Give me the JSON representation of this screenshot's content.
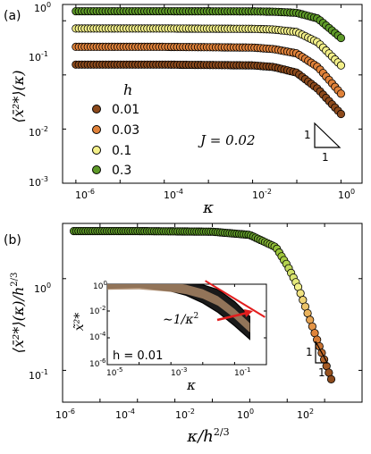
{
  "panel_a": {
    "label": "(a)",
    "x_axis_label": "κ",
    "y_axis_label": "⟨x̄²*⟩(κ)",
    "x_ticks": [
      "10-6",
      "10-4",
      "10-2",
      "100"
    ],
    "y_ticks": [
      "100",
      "10-1",
      "10-2",
      "10-3"
    ],
    "legend_title": "h",
    "legend_labels": [
      "0.01",
      "0.03",
      "0.1",
      "0.3"
    ],
    "annotation": "J = 0.02",
    "slope_triangle": {
      "vertical": "1",
      "horizontal": "1"
    }
  },
  "panel_b": {
    "label": "(b)",
    "x_axis_label": "κ/h2/3",
    "y_axis_label": "⟨x̄²*⟩(κ)/h2/3",
    "x_ticks": [
      "10-6",
      "10-4",
      "10-2",
      "100",
      "102"
    ],
    "y_ticks": [
      "100",
      "10-1"
    ],
    "slope_triangle": {
      "vertical": "1",
      "horizontal": "1"
    },
    "inset": {
      "x_axis_label": "κ",
      "y_axis_label": "x̃²*",
      "x_ticks": [
        "10-5",
        "10-3",
        "10-1"
      ],
      "y_ticks": [
        "100",
        "10-2",
        "10-4",
        "10-6"
      ],
      "annotation": "∼1/κ2",
      "h_label": "h = 0.01"
    }
  },
  "chart_data": [
    {
      "type": "scatter",
      "panel": "(a)",
      "xlabel": "κ",
      "ylabel": "⟨x̄²*⟩(κ)",
      "x_scale": "log",
      "y_scale": "log",
      "xlim": [
        5e-07,
        3
      ],
      "ylim": [
        0.001,
        2
      ],
      "legend_title": "h",
      "legend_position": "left-center",
      "series": [
        {
          "name": "0.01",
          "color": "#8c4a1c",
          "plateau": 0.155,
          "x": [
            1e-06,
            0.0001,
            0.01,
            0.03,
            0.1,
            0.3,
            1
          ],
          "y": [
            0.155,
            0.155,
            0.15,
            0.14,
            0.11,
            0.055,
            0.019
          ]
        },
        {
          "name": "0.03",
          "color": "#e0823a",
          "plateau": 0.33,
          "x": [
            1e-06,
            0.0001,
            0.01,
            0.03,
            0.1,
            0.3,
            1
          ],
          "y": [
            0.33,
            0.33,
            0.32,
            0.3,
            0.25,
            0.14,
            0.045
          ]
        },
        {
          "name": "0.1",
          "color": "#f3f08a",
          "plateau": 0.72,
          "x": [
            1e-06,
            0.0001,
            0.01,
            0.03,
            0.1,
            0.3,
            1
          ],
          "y": [
            0.72,
            0.72,
            0.71,
            0.69,
            0.62,
            0.4,
            0.15
          ]
        },
        {
          "name": "0.3",
          "color": "#5e9a28",
          "plateau": 1.5,
          "x": [
            1e-06,
            0.0001,
            0.01,
            0.03,
            0.1,
            0.3,
            1
          ],
          "y": [
            1.5,
            1.5,
            1.49,
            1.47,
            1.4,
            1.1,
            0.48
          ]
        }
      ],
      "annotations": [
        "J = 0.02"
      ]
    },
    {
      "type": "scatter",
      "panel": "(b)",
      "xlabel": "κ/h^(2/3)",
      "ylabel": "⟨x̄²*⟩(κ)/h^(2/3)",
      "x_scale": "log",
      "y_scale": "log",
      "xlim": [
        1e-06,
        100
      ],
      "ylim": [
        0.045,
        4
      ],
      "series": [
        {
          "name": "collapsed",
          "x": [
            2e-06,
            0.0001,
            0.01,
            0.1,
            0.5,
            1,
            2,
            5,
            15
          ],
          "y": [
            3.3,
            3.3,
            3.25,
            3.0,
            2.2,
            1.4,
            0.8,
            0.28,
            0.08
          ]
        }
      ],
      "inset": {
        "type": "scatter",
        "xlabel": "κ",
        "ylabel": "x̃²*",
        "x_scale": "log",
        "y_scale": "log",
        "xlim": [
          1e-05,
          1
        ],
        "ylim": [
          1e-06,
          1
        ],
        "band_x": [
          1e-05,
          0.0001,
          0.001,
          0.003,
          0.01,
          0.03,
          0.1,
          0.3
        ],
        "band_y_high": [
          1.5,
          1.4,
          1.2,
          1.1,
          0.9,
          0.4,
          0.05,
          0.004
        ],
        "band_y_low": [
          0.5,
          0.6,
          0.3,
          0.15,
          0.04,
          0.008,
          0.0008,
          8e-05
        ],
        "fit_line": {
          "label": "∼1/κ^2",
          "color": "#e21d1d"
        },
        "annotations": [
          "h = 0.01"
        ]
      }
    }
  ]
}
